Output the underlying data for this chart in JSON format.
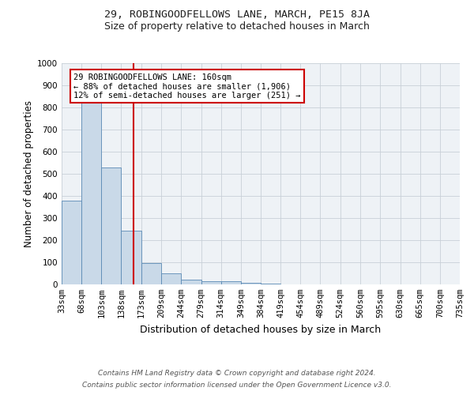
{
  "title": "29, ROBINGOODFELLOWS LANE, MARCH, PE15 8JA",
  "subtitle": "Size of property relative to detached houses in March",
  "xlabel": "Distribution of detached houses by size in March",
  "ylabel": "Number of detached properties",
  "footer_line1": "Contains HM Land Registry data © Crown copyright and database right 2024.",
  "footer_line2": "Contains public sector information licensed under the Open Government Licence v3.0.",
  "bins": [
    33,
    68,
    103,
    138,
    173,
    209,
    244,
    279,
    314,
    349,
    384,
    419,
    454,
    489,
    524,
    560,
    595,
    630,
    665,
    700,
    735
  ],
  "bin_labels": [
    "33sqm",
    "68sqm",
    "103sqm",
    "138sqm",
    "173sqm",
    "209sqm",
    "244sqm",
    "279sqm",
    "314sqm",
    "349sqm",
    "384sqm",
    "419sqm",
    "454sqm",
    "489sqm",
    "524sqm",
    "560sqm",
    "595sqm",
    "630sqm",
    "665sqm",
    "700sqm",
    "735sqm"
  ],
  "counts": [
    380,
    830,
    530,
    243,
    95,
    50,
    22,
    16,
    13,
    8,
    5,
    0,
    0,
    0,
    0,
    0,
    0,
    0,
    0,
    0
  ],
  "bar_color": "#c9d9e8",
  "bar_edge_color": "#5a8ab5",
  "grid_color": "#c8d0d8",
  "background_color": "#eef2f6",
  "red_line_x": 160,
  "red_line_color": "#cc0000",
  "annotation_text": "29 ROBINGOODFELLOWS LANE: 160sqm\n← 88% of detached houses are smaller (1,906)\n12% of semi-detached houses are larger (251) →",
  "annotation_box_color": "#ffffff",
  "annotation_box_edge": "#cc0000",
  "ylim": [
    0,
    1000
  ],
  "yticks": [
    0,
    100,
    200,
    300,
    400,
    500,
    600,
    700,
    800,
    900,
    1000
  ],
  "title_fontsize": 9.5,
  "subtitle_fontsize": 9.0,
  "xlabel_fontsize": 9.0,
  "ylabel_fontsize": 8.5,
  "tick_fontsize": 7.5,
  "annotation_fontsize": 7.5,
  "footer_fontsize": 6.5
}
